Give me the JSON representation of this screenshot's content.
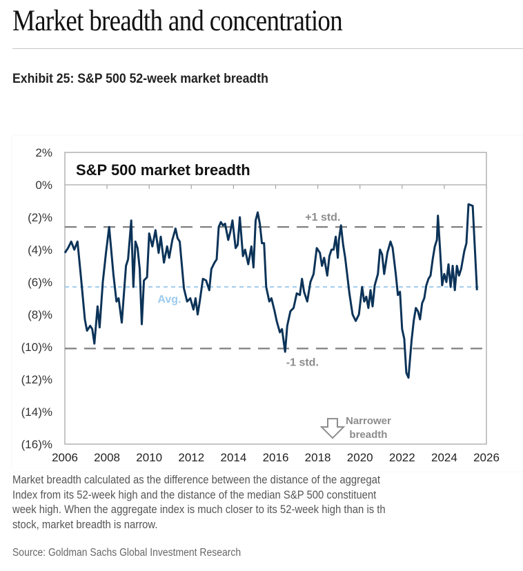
{
  "header": {
    "title": "Market breadth and concentration",
    "exhibit": "Exhibit 25: S&P 500 52-week market breadth"
  },
  "caption": {
    "lines": [
      "Market breadth calculated as the difference between the distance of the aggregat",
      "Index from its 52-week high and the distance of the median S&P 500 constituent",
      "week high. When the aggregate index is much closer to its 52-week high than is th",
      "stock, market breadth is narrow."
    ],
    "source": "Source: Goldman Sachs Global Investment Research"
  },
  "chart_data": {
    "type": "line",
    "title": "S&P 500 market breadth",
    "xlabel": "",
    "ylabel": "",
    "xlim": [
      2006,
      2026
    ],
    "ylim": [
      -16,
      2
    ],
    "x_ticks": [
      2006,
      2008,
      2010,
      2012,
      2014,
      2016,
      2018,
      2020,
      2022,
      2024,
      2026
    ],
    "x_tick_labels": [
      "2006",
      "2008",
      "2010",
      "2012",
      "2014",
      "2016",
      "2018",
      "2020",
      "2022",
      "2024",
      "2026"
    ],
    "y_ticks": [
      2,
      0,
      -2,
      -4,
      -6,
      -8,
      -10,
      -12,
      -14,
      -16
    ],
    "y_tick_labels": [
      "2%",
      "0%",
      "(2)%",
      "(4)%",
      "(6)%",
      "(8)%",
      "(10)%",
      "(12)%",
      "(14)%",
      "(16)%"
    ],
    "grid": false,
    "reference_lines": [
      {
        "name": "+1 std.",
        "value": -2.6,
        "color": "#7f7f7f",
        "style": "long-dash"
      },
      {
        "name": "Avg.",
        "value": -6.3,
        "color": "#8fc3ea",
        "style": "short-dash"
      },
      {
        "name": "-1 std.",
        "value": -10.1,
        "color": "#7f7f7f",
        "style": "long-dash"
      }
    ],
    "annotations": [
      {
        "text": "+1 std."
      },
      {
        "text": "Avg."
      },
      {
        "text": "-1 std."
      },
      {
        "text_lines": [
          "Narrower",
          "breadth"
        ],
        "icon": "down-arrow-icon"
      }
    ],
    "series": [
      {
        "name": "S&P 500 market breadth",
        "color": "#0c3358",
        "points": [
          [
            2006.0,
            -4.2
          ],
          [
            2006.15,
            -3.9
          ],
          [
            2006.3,
            -3.5
          ],
          [
            2006.45,
            -4.0
          ],
          [
            2006.6,
            -3.5
          ],
          [
            2006.75,
            -5.5
          ],
          [
            2006.95,
            -8.3
          ],
          [
            2007.05,
            -9.0
          ],
          [
            2007.2,
            -8.7
          ],
          [
            2007.3,
            -8.9
          ],
          [
            2007.4,
            -9.8
          ],
          [
            2007.55,
            -7.5
          ],
          [
            2007.65,
            -8.8
          ],
          [
            2007.8,
            -6.0
          ],
          [
            2007.95,
            -4.2
          ],
          [
            2008.1,
            -2.6
          ],
          [
            2008.3,
            -5.5
          ],
          [
            2008.45,
            -7.2
          ],
          [
            2008.55,
            -7.0
          ],
          [
            2008.7,
            -8.5
          ],
          [
            2008.9,
            -5.0
          ],
          [
            2009.0,
            -4.6
          ],
          [
            2009.15,
            -2.2
          ],
          [
            2009.25,
            -6.3
          ],
          [
            2009.35,
            -3.5
          ],
          [
            2009.45,
            -3.9
          ],
          [
            2009.55,
            -5.2
          ],
          [
            2009.65,
            -8.6
          ],
          [
            2009.75,
            -5.9
          ],
          [
            2009.9,
            -5.7
          ],
          [
            2010.0,
            -3.0
          ],
          [
            2010.15,
            -3.8
          ],
          [
            2010.3,
            -2.8
          ],
          [
            2010.45,
            -4.2
          ],
          [
            2010.55,
            -3.2
          ],
          [
            2010.7,
            -4.8
          ],
          [
            2010.85,
            -3.8
          ],
          [
            2010.95,
            -4.5
          ],
          [
            2011.1,
            -3.4
          ],
          [
            2011.25,
            -2.7
          ],
          [
            2011.35,
            -3.3
          ],
          [
            2011.45,
            -3.5
          ],
          [
            2011.65,
            -6.4
          ],
          [
            2011.8,
            -7.2
          ],
          [
            2011.95,
            -7.0
          ],
          [
            2012.1,
            -7.7
          ],
          [
            2012.2,
            -7.0
          ],
          [
            2012.3,
            -8.0
          ],
          [
            2012.4,
            -7.2
          ],
          [
            2012.55,
            -5.8
          ],
          [
            2012.7,
            -5.9
          ],
          [
            2012.85,
            -6.5
          ],
          [
            2012.95,
            -5.2
          ],
          [
            2013.1,
            -4.8
          ],
          [
            2013.2,
            -4.6
          ],
          [
            2013.3,
            -2.6
          ],
          [
            2013.4,
            -2.3
          ],
          [
            2013.5,
            -2.5
          ],
          [
            2013.6,
            -2.4
          ],
          [
            2013.75,
            -3.4
          ],
          [
            2013.85,
            -2.9
          ],
          [
            2013.95,
            -2.2
          ],
          [
            2014.1,
            -3.9
          ],
          [
            2014.2,
            -3.7
          ],
          [
            2014.3,
            -2.0
          ],
          [
            2014.45,
            -4.4
          ],
          [
            2014.55,
            -4.0
          ],
          [
            2014.7,
            -4.9
          ],
          [
            2014.85,
            -3.8
          ],
          [
            2014.95,
            -5.1
          ],
          [
            2015.05,
            -2.2
          ],
          [
            2015.15,
            -1.7
          ],
          [
            2015.25,
            -2.4
          ],
          [
            2015.35,
            -3.6
          ],
          [
            2015.45,
            -3.6
          ],
          [
            2015.55,
            -6.3
          ],
          [
            2015.7,
            -7.2
          ],
          [
            2015.8,
            -7.0
          ],
          [
            2015.95,
            -7.8
          ],
          [
            2016.05,
            -8.4
          ],
          [
            2016.2,
            -9.1
          ],
          [
            2016.3,
            -8.9
          ],
          [
            2016.45,
            -10.3
          ],
          [
            2016.55,
            -8.7
          ],
          [
            2016.7,
            -7.8
          ],
          [
            2016.85,
            -7.6
          ],
          [
            2017.0,
            -6.7
          ],
          [
            2017.15,
            -6.8
          ],
          [
            2017.25,
            -5.8
          ],
          [
            2017.35,
            -6.6
          ],
          [
            2017.5,
            -7.2
          ],
          [
            2017.65,
            -6.0
          ],
          [
            2017.8,
            -5.5
          ],
          [
            2017.95,
            -3.9
          ],
          [
            2018.1,
            -4.2
          ],
          [
            2018.2,
            -5.0
          ],
          [
            2018.3,
            -4.5
          ],
          [
            2018.45,
            -5.6
          ],
          [
            2018.55,
            -4.4
          ],
          [
            2018.65,
            -4.0
          ],
          [
            2018.75,
            -4.0
          ],
          [
            2018.85,
            -3.2
          ],
          [
            2018.95,
            -4.5
          ],
          [
            2019.0,
            -3.4
          ],
          [
            2019.1,
            -2.5
          ],
          [
            2019.2,
            -3.7
          ],
          [
            2019.3,
            -4.5
          ],
          [
            2019.5,
            -6.7
          ],
          [
            2019.65,
            -8.0
          ],
          [
            2019.8,
            -8.4
          ],
          [
            2019.95,
            -8.0
          ],
          [
            2020.1,
            -6.3
          ],
          [
            2020.2,
            -7.2
          ],
          [
            2020.3,
            -6.9
          ],
          [
            2020.4,
            -7.6
          ],
          [
            2020.5,
            -6.5
          ],
          [
            2020.6,
            -7.5
          ],
          [
            2020.7,
            -6.2
          ],
          [
            2020.85,
            -5.5
          ],
          [
            2020.95,
            -4.0
          ],
          [
            2021.05,
            -4.3
          ],
          [
            2021.15,
            -5.5
          ],
          [
            2021.3,
            -4.2
          ],
          [
            2021.45,
            -3.5
          ],
          [
            2021.55,
            -3.9
          ],
          [
            2021.7,
            -5.5
          ],
          [
            2021.8,
            -6.8
          ],
          [
            2021.9,
            -6.6
          ],
          [
            2022.0,
            -8.9
          ],
          [
            2022.1,
            -9.5
          ],
          [
            2022.2,
            -11.6
          ],
          [
            2022.3,
            -11.9
          ],
          [
            2022.45,
            -9.6
          ],
          [
            2022.55,
            -8.4
          ],
          [
            2022.65,
            -7.6
          ],
          [
            2022.75,
            -7.8
          ],
          [
            2022.85,
            -8.3
          ],
          [
            2022.95,
            -7.3
          ],
          [
            2023.05,
            -7.0
          ],
          [
            2023.15,
            -6.2
          ],
          [
            2023.25,
            -5.8
          ],
          [
            2023.35,
            -5.6
          ],
          [
            2023.45,
            -4.6
          ],
          [
            2023.55,
            -3.8
          ],
          [
            2023.65,
            -3.4
          ],
          [
            2023.7,
            -1.9
          ],
          [
            2023.8,
            -4.0
          ],
          [
            2023.9,
            -6.2
          ],
          [
            2024.0,
            -5.5
          ],
          [
            2024.1,
            -6.0
          ],
          [
            2024.2,
            -4.9
          ],
          [
            2024.3,
            -6.3
          ],
          [
            2024.4,
            -5.0
          ],
          [
            2024.5,
            -6.5
          ],
          [
            2024.6,
            -5.0
          ],
          [
            2024.7,
            -5.6
          ],
          [
            2024.8,
            -5.2
          ],
          [
            2024.95,
            -4.1
          ],
          [
            2025.05,
            -3.6
          ],
          [
            2025.15,
            -1.2
          ],
          [
            2025.35,
            -1.3
          ],
          [
            2025.55,
            -6.5
          ]
        ]
      }
    ]
  }
}
